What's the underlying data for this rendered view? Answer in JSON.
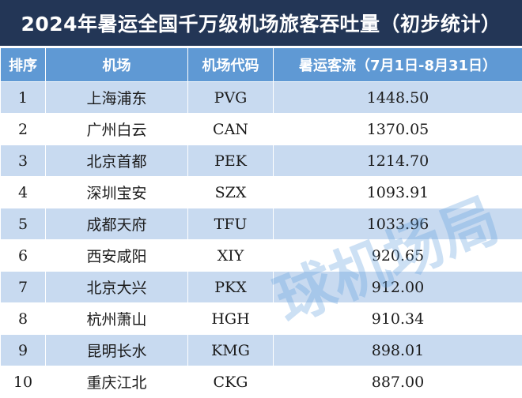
{
  "title": "2024年暑运全国千万级机场旅客吞吐量（初步统计）",
  "headers": [
    "排序",
    "机场",
    "机场代码",
    "暑运客流（7月1日-8月31日）"
  ],
  "rows": [
    {
      "rank": "1",
      "airport": "上海浦东",
      "code": "PVG",
      "traffic": "1448.50"
    },
    {
      "rank": "2",
      "airport": "广州白云",
      "code": "CAN",
      "traffic": "1370.05"
    },
    {
      "rank": "3",
      "airport": "北京首都",
      "code": "PEK",
      "traffic": "1214.70"
    },
    {
      "rank": "4",
      "airport": "深圳宝安",
      "code": "SZX",
      "traffic": "1093.91"
    },
    {
      "rank": "5",
      "airport": "成都天府",
      "code": "TFU",
      "traffic": "1033.96"
    },
    {
      "rank": "6",
      "airport": "西安咸阳",
      "code": "XIY",
      "traffic": "920.65"
    },
    {
      "rank": "7",
      "airport": "北京大兴",
      "code": "PKX",
      "traffic": "912.00"
    },
    {
      "rank": "8",
      "airport": "杭州萧山",
      "code": "HGH",
      "traffic": "910.34"
    },
    {
      "rank": "9",
      "airport": "昆明长水",
      "code": "KMG",
      "traffic": "898.01"
    },
    {
      "rank": "10",
      "airport": "重庆江北",
      "code": "CKG",
      "traffic": "887.00"
    }
  ],
  "watermark": "球机场局",
  "colors": {
    "title_bg": "#233656",
    "header_bg": "#5f99d4",
    "row_alt_bg": "#c8daf0"
  }
}
